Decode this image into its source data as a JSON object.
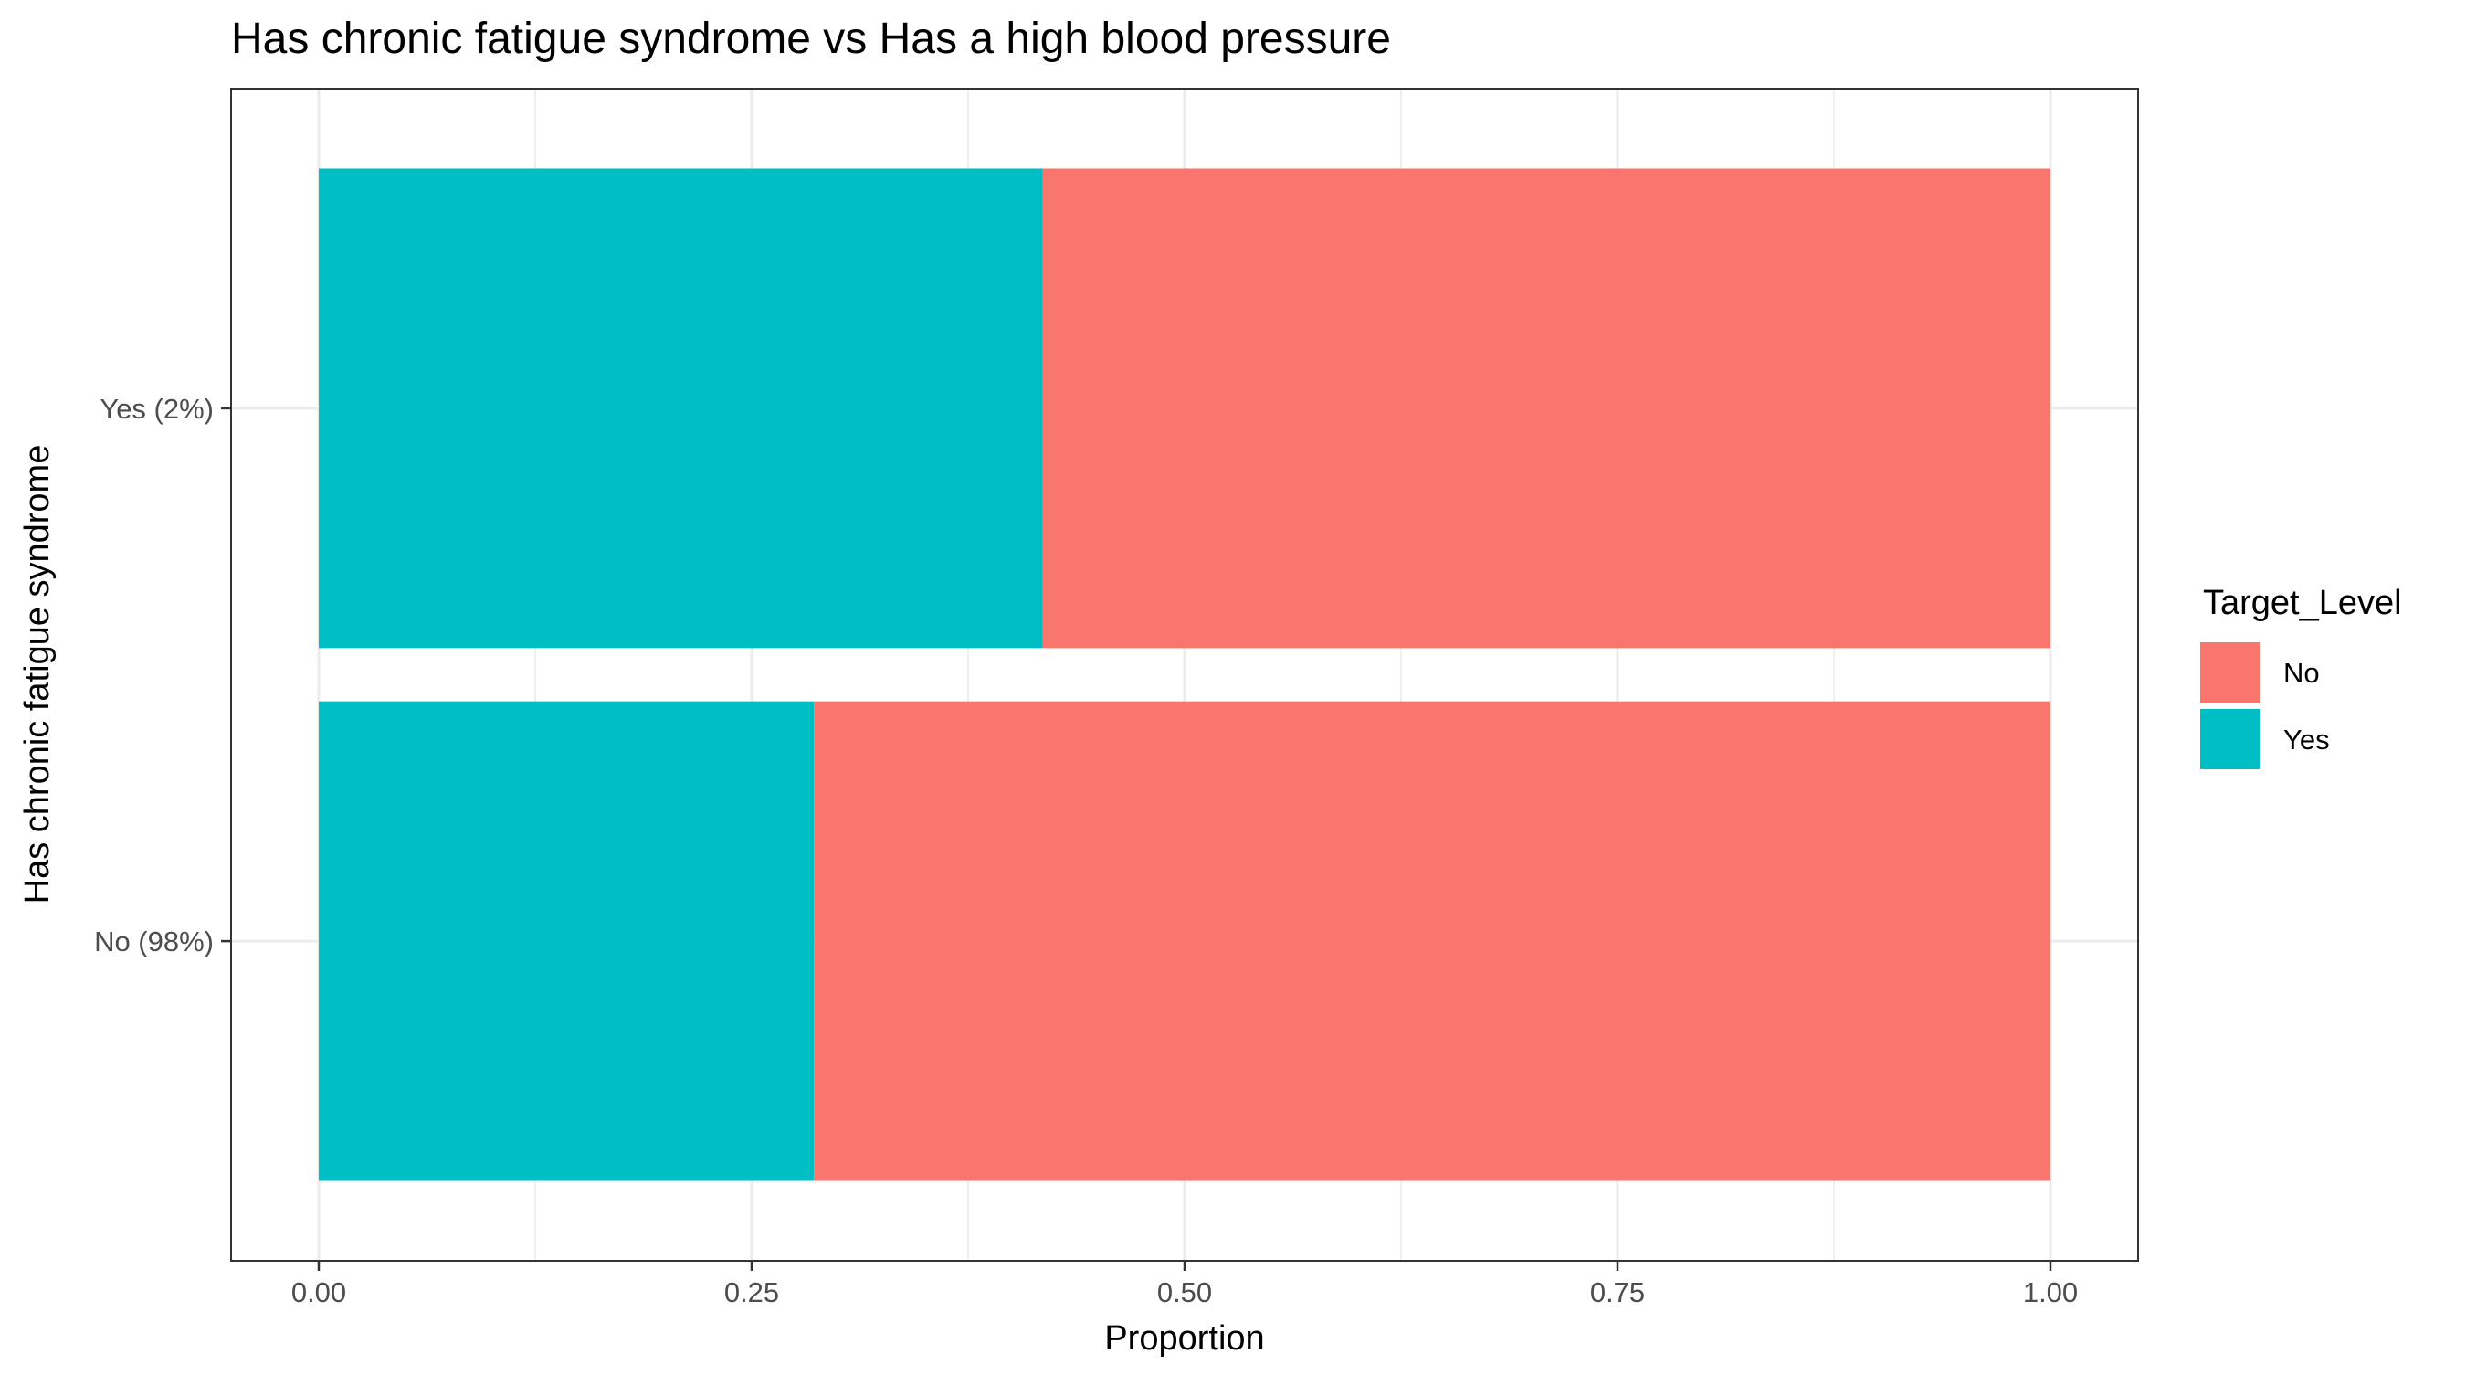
{
  "chart_data": {
    "type": "bar",
    "orientation": "horizontal",
    "stacked": true,
    "title": "Has chronic fatigue syndrome vs Has a high blood pressure",
    "xlabel": "Proportion",
    "ylabel": "Has chronic fatigue syndrome",
    "categories": [
      "Yes (2%)",
      "No (98%)"
    ],
    "x_ticks": [
      "0.00",
      "0.25",
      "0.50",
      "0.75",
      "1.00"
    ],
    "xlim": [
      0,
      1
    ],
    "grid": true,
    "legend": {
      "title": "Target_Level",
      "position": "right",
      "entries": [
        "No",
        "Yes"
      ]
    },
    "series": [
      {
        "name": "Yes",
        "color": "#00BFC4",
        "values": [
          0.418,
          0.286
        ]
      },
      {
        "name": "No",
        "color": "#F8766D",
        "values": [
          0.582,
          0.714
        ]
      }
    ]
  }
}
